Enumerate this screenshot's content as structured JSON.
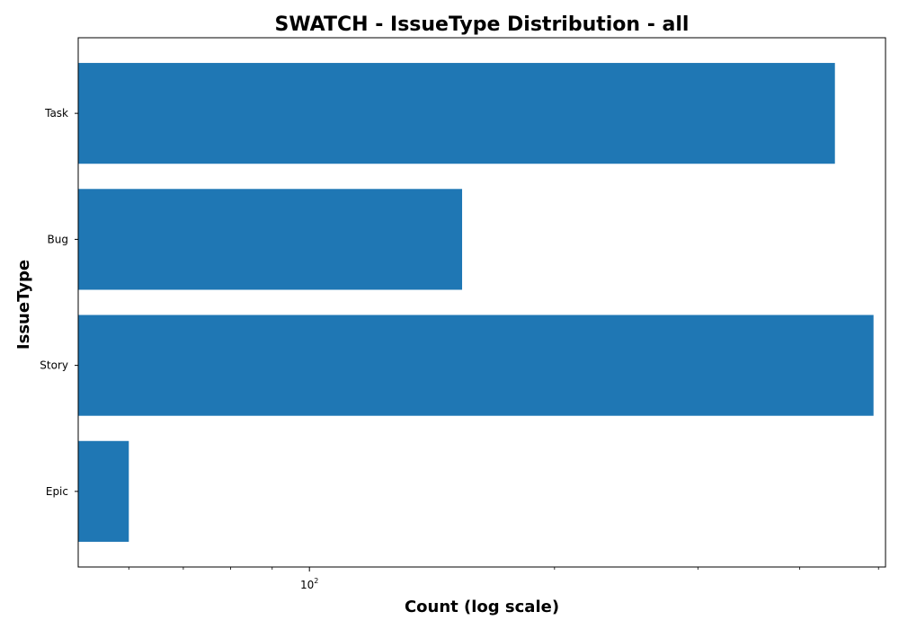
{
  "chart_data": {
    "type": "bar",
    "orientation": "horizontal",
    "title": "SWATCH - IssueType Distribution - all",
    "xlabel": "Count (log scale)",
    "ylabel": "IssueType",
    "x_scale": "log",
    "xlim": [
      52,
      510
    ],
    "x_major_ticks": [
      {
        "value": 100,
        "base": "10",
        "exponent": "2"
      }
    ],
    "x_minor_ticks": [
      60,
      70,
      80,
      90,
      200,
      300,
      400,
      500
    ],
    "categories": [
      "Task",
      "Bug",
      "Story",
      "Epic"
    ],
    "values": [
      442,
      154,
      493,
      60
    ],
    "bar_color": "#1f77b4",
    "grid": false,
    "legend": "none"
  }
}
